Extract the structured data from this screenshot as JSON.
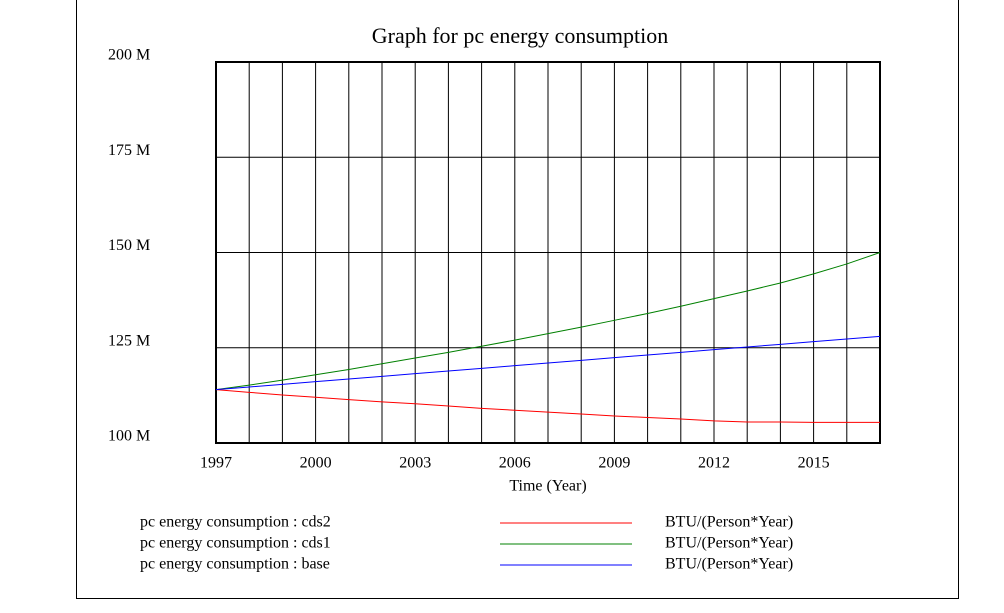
{
  "chart_data": {
    "type": "line",
    "title": "Graph for pc energy consumption",
    "xlabel": "Time (Year)",
    "x": [
      1997,
      1998,
      1999,
      2000,
      2001,
      2002,
      2003,
      2004,
      2005,
      2006,
      2007,
      2008,
      2009,
      2010,
      2011,
      2012,
      2013,
      2014,
      2015,
      2016,
      2017
    ],
    "xlim": [
      1997,
      2017
    ],
    "xticks": [
      1997,
      2000,
      2003,
      2006,
      2009,
      2012,
      2015
    ],
    "x_gridlines": [
      1997,
      1998,
      1999,
      2000,
      2001,
      2002,
      2003,
      2004,
      2005,
      2006,
      2007,
      2008,
      2009,
      2010,
      2011,
      2012,
      2013,
      2014,
      2015,
      2016,
      2017
    ],
    "ylim": [
      100,
      200
    ],
    "yticks": [
      {
        "value": 100,
        "label": "100 M"
      },
      {
        "value": 125,
        "label": "125 M"
      },
      {
        "value": 150,
        "label": "150 M"
      },
      {
        "value": 175,
        "label": "175 M"
      },
      {
        "value": 200,
        "label": "200 M"
      }
    ],
    "grid": true,
    "series": [
      {
        "name": "pc energy consumption : cds2",
        "units": "BTU/(Person*Year)",
        "color": "#ff0000",
        "values": [
          114,
          113.3,
          112.6,
          112,
          111.4,
          110.8,
          110.3,
          109.7,
          109.1,
          108.6,
          108.1,
          107.6,
          107.1,
          106.7,
          106.3,
          105.8,
          105.5,
          105.5,
          105.4,
          105.4,
          105.4
        ]
      },
      {
        "name": "pc energy consumption : cds1",
        "units": "BTU/(Person*Year)",
        "color": "#008000",
        "values": [
          114,
          115.2,
          116.5,
          117.9,
          119.3,
          120.8,
          122.3,
          123.8,
          125.4,
          127,
          128.7,
          130.4,
          132.2,
          134,
          135.9,
          137.9,
          139.9,
          142,
          144.4,
          147,
          150
        ]
      },
      {
        "name": "pc energy consumption : base",
        "units": "BTU/(Person*Year)",
        "color": "#0000ff",
        "values": [
          114,
          114.7,
          115.4,
          116.1,
          116.8,
          117.5,
          118.2,
          118.9,
          119.6,
          120.3,
          121,
          121.7,
          122.4,
          123.1,
          123.8,
          124.5,
          125.2,
          125.9,
          126.6,
          127.3,
          128
        ]
      }
    ]
  }
}
